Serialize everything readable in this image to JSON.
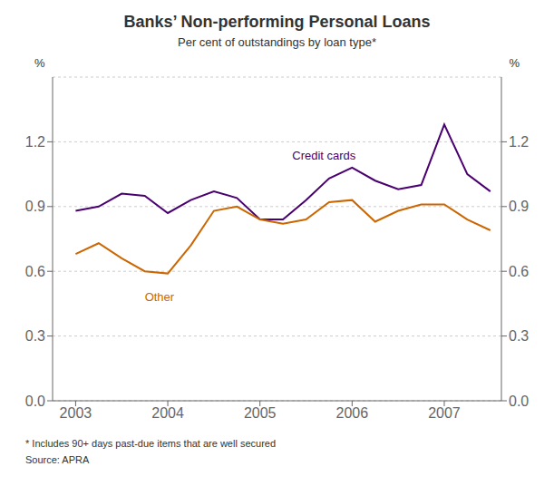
{
  "chart_data": {
    "type": "line",
    "title": "Banks’ Non-performing Personal Loans",
    "subtitle": "Per cent of outstandings by loan type*",
    "footnote": "*  Includes 90+ days past-due items that are well secured",
    "source": "Source: APRA",
    "y_label": "%",
    "y2_label": "%",
    "x": [
      2003.0,
      2003.25,
      2003.5,
      2003.75,
      2004.0,
      2004.25,
      2004.5,
      2004.75,
      2005.0,
      2005.25,
      2005.5,
      2005.75,
      2006.0,
      2006.25,
      2006.5,
      2006.75,
      2007.0,
      2007.25,
      2007.5
    ],
    "series": [
      {
        "name": "Credit cards",
        "color": "#4a0070",
        "values": [
          0.88,
          0.9,
          0.96,
          0.95,
          0.87,
          0.93,
          0.97,
          0.94,
          0.84,
          0.84,
          0.93,
          1.03,
          1.08,
          1.02,
          0.98,
          1.0,
          1.28,
          1.05,
          0.97
        ]
      },
      {
        "name": "Other",
        "color": "#cc6600",
        "values": [
          0.68,
          0.73,
          0.66,
          0.6,
          0.59,
          0.72,
          0.88,
          0.9,
          0.84,
          0.82,
          0.84,
          0.92,
          0.93,
          0.83,
          0.88,
          0.91,
          0.91,
          0.84,
          0.79
        ]
      }
    ],
    "annotations": [
      {
        "text": "Credit cards",
        "x": 2005.35,
        "y": 1.1,
        "color": "#4a0070"
      },
      {
        "text": "Other",
        "x": 2003.75,
        "y": 0.52,
        "color": "#cc6600"
      }
    ],
    "xlim": [
      2002.75,
      2007.62
    ],
    "xticks": [
      2003,
      2004,
      2005,
      2006,
      2007
    ],
    "ylim": [
      0.0,
      1.5
    ],
    "yticks": [
      {
        "value": 0.0,
        "label": "0.0"
      },
      0.3,
      0.6,
      0.9,
      1.2
    ],
    "y2lim": [
      0.0,
      1.5
    ],
    "y2ticks": [
      {
        "value": 0.0,
        "label": "0.0"
      },
      0.3,
      0.6,
      0.9,
      1.2
    ],
    "grid": true
  }
}
